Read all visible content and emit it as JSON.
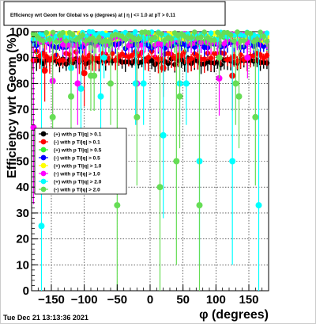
{
  "chart_data": {
    "type": "scatter",
    "title": "Efficiency wrt Geom for Global vs φ (degrees) at | η | <= 1.0 at pT > 0.11",
    "xlabel": "φ (degrees)",
    "ylabel": "Efficiency wrt Geom (%)",
    "xlim": [
      -180,
      180
    ],
    "ylim": [
      0,
      100
    ],
    "grid": true,
    "legend_placement": "middle-left",
    "x_ticks": [
      -150,
      -100,
      -50,
      0,
      50,
      100,
      150
    ],
    "x_tick_labels": [
      "−150",
      "−100",
      "−50",
      "0",
      "50",
      "100",
      "150"
    ],
    "y_ticks": [
      0,
      10,
      20,
      30,
      40,
      50,
      60,
      70,
      80,
      90,
      100
    ],
    "y_tick_labels": [
      "0",
      "10",
      "20",
      "30",
      "40",
      "50",
      "60",
      "70",
      "80",
      "90",
      "100"
    ],
    "footer": "Tue Dec 21 13:13:36 2021",
    "series": [
      {
        "name": "(+) with p T/|q| > 0.1",
        "color": "#000000",
        "base": 88.5,
        "spread": 1.2,
        "err": 2.5,
        "outliers": []
      },
      {
        "name": "(-) with p T/|q| > 0.1",
        "color": "#ff0000",
        "base": 90.5,
        "spread": 2.0,
        "err": 3.5,
        "outliers": [
          [
            -160,
            85
          ],
          [
            -100,
            84
          ],
          [
            20,
            86
          ],
          [
            125,
            83
          ]
        ]
      },
      {
        "name": "(+) with p T/|q| > 0.5",
        "color": "#33ee33",
        "base": 96.5,
        "spread": 1.5,
        "err": 2.5,
        "outliers": []
      },
      {
        "name": "(-) with p T/|q| > 0.5",
        "color": "#0000ff",
        "base": 95.0,
        "spread": 1.5,
        "err": 2.5,
        "outliers": []
      },
      {
        "name": "(+) with p T/|q| > 1.0",
        "color": "#ffff00",
        "base": 98.0,
        "spread": 1.5,
        "err": 2.0,
        "outliers": []
      },
      {
        "name": "(-) with p T/|q| > 1.0",
        "color": "#ff00ff",
        "base": 97.0,
        "spread": 2.5,
        "err": 3.5,
        "outliers": [
          [
            -177,
            63
          ],
          [
            -148,
            81
          ],
          [
            -110,
            80
          ],
          [
            -20,
            80
          ],
          [
            105,
            82
          ],
          [
            148,
            90
          ]
        ]
      },
      {
        "name": "(+) with p T/|q| > 2.0",
        "color": "#00ffff",
        "base": 98.5,
        "spread": 1.5,
        "err": 2.0,
        "outliers": [
          [
            -165,
            25
          ],
          [
            -105,
            78
          ],
          [
            -75,
            75
          ],
          [
            -70,
            90
          ],
          [
            -22,
            80
          ],
          [
            -10,
            80
          ],
          [
            20,
            60
          ],
          [
            45,
            80
          ],
          [
            55,
            80
          ],
          [
            75,
            50
          ],
          [
            125,
            50
          ],
          [
            165,
            33
          ],
          [
            -120,
            86
          ]
        ]
      },
      {
        "name": "(-) with p T/|q| > 2.0",
        "color": "#66dd55",
        "base": 98.0,
        "spread": 2.0,
        "err": 3.0,
        "outliers": [
          [
            -148,
            67
          ],
          [
            -120,
            75
          ],
          [
            -90,
            83
          ],
          [
            -85,
            83
          ],
          [
            -60,
            80
          ],
          [
            -50,
            33
          ],
          [
            -20,
            67
          ],
          [
            15,
            40
          ],
          [
            40,
            50
          ],
          [
            45,
            75
          ],
          [
            75,
            33
          ],
          [
            105,
            90
          ],
          [
            130,
            80
          ],
          [
            135,
            75
          ],
          [
            160,
            67
          ]
        ]
      }
    ]
  }
}
